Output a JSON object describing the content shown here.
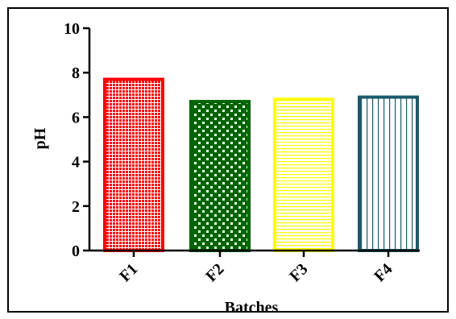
{
  "chart_data": {
    "type": "bar",
    "categories": [
      "F1",
      "F2",
      "F3",
      "F4"
    ],
    "values": [
      7.7,
      6.7,
      6.8,
      6.9
    ],
    "title": "",
    "xlabel": "Batches",
    "ylabel": "pH",
    "ylim": [
      0,
      10
    ],
    "yticks": [
      "0",
      "2",
      "4",
      "6",
      "8",
      "10"
    ],
    "grid": false,
    "legend": "none",
    "bars": [
      {
        "pattern": "dots",
        "fill_color": "#ffffff",
        "pattern_color": "#ff0000",
        "edge_color": "#ff0000"
      },
      {
        "pattern": "checker",
        "fill_color": "#ffffff",
        "pattern_color": "#006400",
        "edge_color": "#006400"
      },
      {
        "pattern": "horizontal-lines",
        "fill_color": "#ffffff",
        "pattern_color": "#ffff00",
        "edge_color": "#ffff00"
      },
      {
        "pattern": "vertical-lines",
        "fill_color": "#ffffff",
        "pattern_color": "#1b5a6b",
        "edge_color": "#1b5a6b"
      }
    ]
  }
}
